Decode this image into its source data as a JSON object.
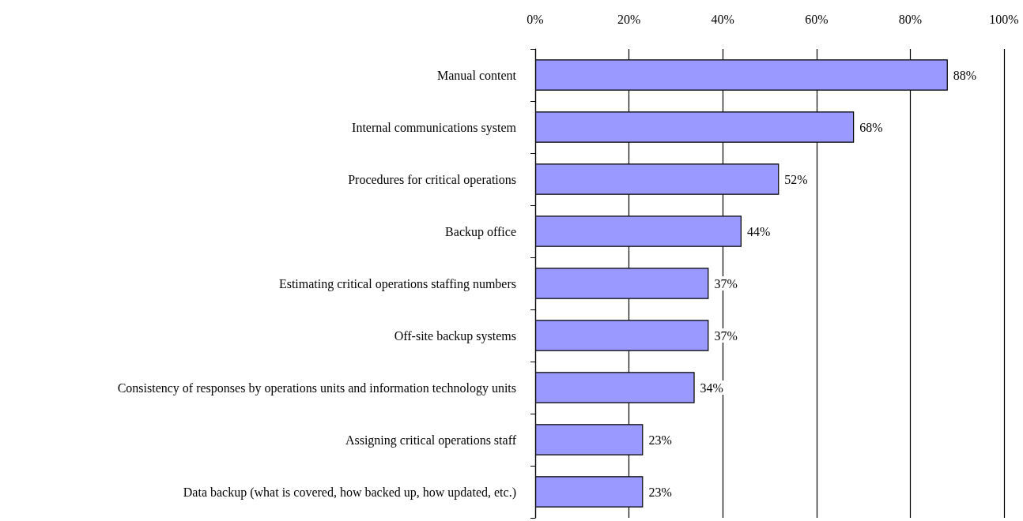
{
  "chart_data": {
    "type": "bar",
    "orientation": "horizontal",
    "categories": [
      "Manual content",
      "Internal communications system",
      "Procedures for critical operations",
      "Backup office",
      "Estimating critical operations staffing numbers",
      "Off-site backup systems",
      "Consistency of responses by operations units and information technology units",
      "Assigning critical operations staff",
      "Data backup (what is covered, how backed up, how updated, etc.)"
    ],
    "values": [
      88,
      68,
      52,
      44,
      37,
      37,
      34,
      23,
      23
    ],
    "value_labels": [
      "88%",
      "68%",
      "52%",
      "44%",
      "37%",
      "37%",
      "34%",
      "23%",
      "23%"
    ],
    "color": "#9999ff",
    "xlim": [
      0,
      100
    ],
    "xticks": [
      {
        "value": 0,
        "label": "0%"
      },
      {
        "value": 20,
        "label": "20%"
      },
      {
        "value": 40,
        "label": "40%"
      },
      {
        "value": 60,
        "label": "60%"
      },
      {
        "value": 80,
        "label": "80%"
      },
      {
        "value": 100,
        "label": "100%"
      }
    ],
    "grid": "x"
  }
}
